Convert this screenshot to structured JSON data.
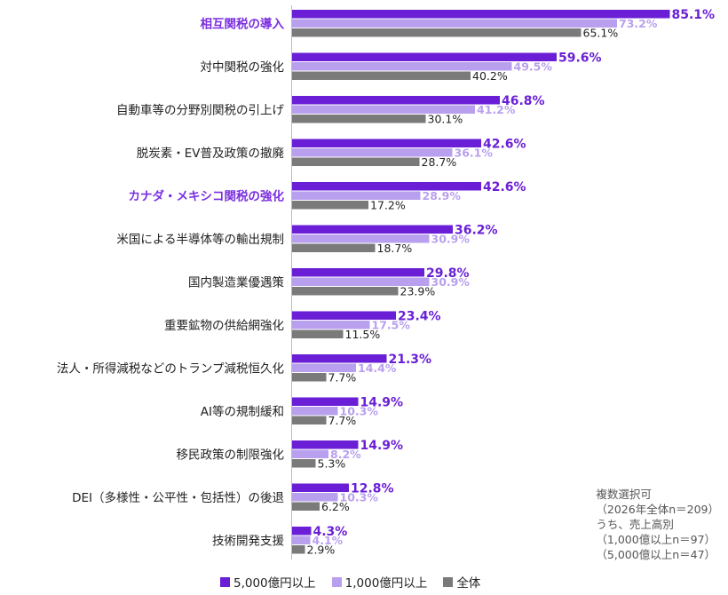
{
  "colors": {
    "s5000": "#6a1fd6",
    "s1000": "#b9a0ee",
    "all": "#7a7a7a",
    "highlight": "#7b2fe0"
  },
  "chart_data": {
    "type": "bar",
    "orientation": "horizontal",
    "categories": [
      "相互関税の導入",
      "対中関税の強化",
      "自動車等の分野別関税の引上げ",
      "脱炭素・EV普及政策の撤廃",
      "カナダ・メキシコ関税の強化",
      "米国による半導体等の輸出規制",
      "国内製造業優遇策",
      "重要鉱物の供給網強化",
      "法人・所得減税などのトランプ減税恒久化",
      "AI等の規制緩和",
      "移民政策の制限強化",
      "DEI（多様性・公平性・包括性）の後退",
      "技術開発支援"
    ],
    "highlighted": [
      true,
      false,
      false,
      false,
      true,
      false,
      false,
      false,
      false,
      false,
      false,
      false,
      false
    ],
    "series": [
      {
        "name": "5,000億円以上",
        "values": [
          85.1,
          59.6,
          46.8,
          42.6,
          42.6,
          36.2,
          29.8,
          23.4,
          21.3,
          14.9,
          14.9,
          12.8,
          4.3
        ],
        "labels": [
          "85.1%",
          "59.6%",
          "46.8%",
          "42.6%",
          "42.6%",
          "36.2%",
          "29.8%",
          "23.4%",
          "21.3%",
          "14.9%",
          "14.9%",
          "12.8%",
          "4.3%"
        ]
      },
      {
        "name": "1,000億円以上",
        "values": [
          73.2,
          49.5,
          41.2,
          36.1,
          28.9,
          30.9,
          30.9,
          17.5,
          14.4,
          10.3,
          8.2,
          10.3,
          4.1
        ],
        "labels": [
          "73.2%",
          "49.5%",
          "41.2%",
          "36.1%",
          "28.9%",
          "30.9%",
          "30.9%",
          "17.5%",
          "14.4%",
          "10.3%",
          "8.2%",
          "10.3%",
          "4.1%"
        ]
      },
      {
        "name": "全体",
        "values": [
          65.1,
          40.2,
          30.1,
          28.7,
          17.2,
          18.7,
          23.9,
          11.5,
          7.7,
          7.7,
          5.3,
          6.2,
          2.9
        ],
        "labels": [
          "65.1%",
          "40.2%",
          "30.1%",
          "28.7%",
          "17.2%",
          "18.7%",
          "23.9%",
          "11.5%",
          "7.7%",
          "7.7%",
          "5.3%",
          "6.2%",
          "2.9%"
        ]
      }
    ],
    "xlim": [
      0,
      100
    ],
    "grid": false,
    "legend": "bottom"
  },
  "note": {
    "line1": "複数選択可",
    "line2": "（2026年全体n＝209）",
    "line3": "うち、売上高別",
    "line4": "（1,000億以上n＝97）",
    "line5": "（5,000億以上n＝47）"
  },
  "legend": {
    "s5000": "5,000億円以上",
    "s1000": "1,000億円以上",
    "all": "全体"
  }
}
